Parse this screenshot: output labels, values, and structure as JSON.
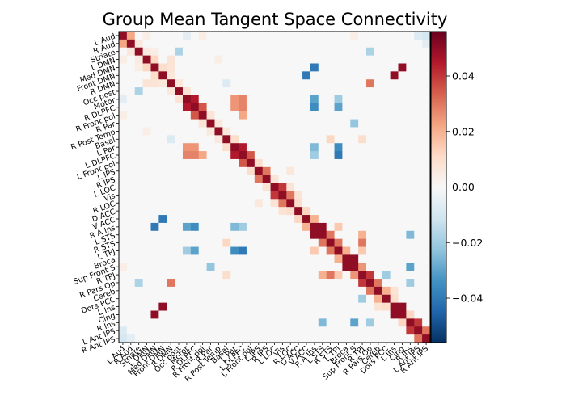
{
  "chart_data": {
    "type": "heatmap",
    "title": "Group Mean Tangent Space Connectivity",
    "xlabel": "",
    "ylabel": "",
    "labels": [
      "L Aud",
      "R Aud",
      "Striate",
      "L DMN",
      "Med DMN",
      "Front DMN",
      "R DMN",
      "Occ post",
      "Motor",
      "R DLPFC",
      "R Front pol",
      "R Par",
      "R Post Temp",
      "Basal",
      "L Par",
      "L DLPFC",
      "L Front pol",
      "L IPS",
      "R IPS",
      "L LOC",
      "Vis",
      "R LOC",
      "D ACC",
      "V ACC",
      "R A Ins",
      "L STS",
      "R STS",
      "L TPJ",
      "Broca",
      "Sup Front S",
      "R TPJ",
      "R Pars Op",
      "Cereb",
      "Dors PCC",
      "L Ins",
      "Cing",
      "R Ins",
      "L Ant IPS",
      "R Ant IPS"
    ],
    "colormap": "RdBu_r",
    "diverging_center": 0.0,
    "color_range": [
      -0.056,
      0.056
    ],
    "colorbar_ticks": [
      -0.04,
      -0.02,
      0.0,
      0.02,
      0.04
    ],
    "colorbar_tick_labels": [
      "−0.04",
      "−0.02",
      "0.00",
      "0.02",
      "0.04"
    ],
    "diagonal_value": 0.05,
    "grid": false,
    "pairs": [
      {
        "a": 0,
        "b": 1,
        "value": 0.022
      },
      {
        "a": 0,
        "b": 3,
        "value": 0.004
      },
      {
        "a": 0,
        "b": 8,
        "value": -0.006
      },
      {
        "a": 0,
        "b": 10,
        "value": 0.004
      },
      {
        "a": 0,
        "b": 29,
        "value": 0.004
      },
      {
        "a": 0,
        "b": 37,
        "value": -0.008
      },
      {
        "a": 0,
        "b": 38,
        "value": -0.01
      },
      {
        "a": 1,
        "b": 2,
        "value": 0.006
      },
      {
        "a": 1,
        "b": 38,
        "value": -0.006
      },
      {
        "a": 2,
        "b": 3,
        "value": 0.005
      },
      {
        "a": 2,
        "b": 4,
        "value": 0.004
      },
      {
        "a": 2,
        "b": 7,
        "value": -0.018
      },
      {
        "a": 2,
        "b": 31,
        "value": -0.018
      },
      {
        "a": 3,
        "b": 4,
        "value": 0.012
      },
      {
        "a": 3,
        "b": 6,
        "value": 0.008
      },
      {
        "a": 3,
        "b": 12,
        "value": 0.004
      },
      {
        "a": 4,
        "b": 5,
        "value": 0.01
      },
      {
        "a": 4,
        "b": 6,
        "value": 0.008
      },
      {
        "a": 4,
        "b": 24,
        "value": -0.04
      },
      {
        "a": 4,
        "b": 35,
        "value": 0.05
      },
      {
        "a": 5,
        "b": 6,
        "value": 0.006
      },
      {
        "a": 5,
        "b": 23,
        "value": -0.04
      },
      {
        "a": 5,
        "b": 34,
        "value": 0.05
      },
      {
        "a": 6,
        "b": 7,
        "value": 0.006
      },
      {
        "a": 6,
        "b": 13,
        "value": -0.008
      },
      {
        "a": 6,
        "b": 31,
        "value": 0.03
      },
      {
        "a": 7,
        "b": 8,
        "value": 0.008
      },
      {
        "a": 8,
        "b": 9,
        "value": 0.045
      },
      {
        "a": 8,
        "b": 14,
        "value": 0.025
      },
      {
        "a": 8,
        "b": 15,
        "value": 0.028
      },
      {
        "a": 8,
        "b": 24,
        "value": -0.03
      },
      {
        "a": 8,
        "b": 27,
        "value": -0.02
      },
      {
        "a": 9,
        "b": 10,
        "value": 0.035
      },
      {
        "a": 9,
        "b": 14,
        "value": 0.025
      },
      {
        "a": 9,
        "b": 15,
        "value": 0.028
      },
      {
        "a": 9,
        "b": 24,
        "value": -0.035
      },
      {
        "a": 9,
        "b": 27,
        "value": -0.03
      },
      {
        "a": 10,
        "b": 11,
        "value": 0.008
      },
      {
        "a": 10,
        "b": 15,
        "value": 0.022
      },
      {
        "a": 11,
        "b": 12,
        "value": 0.006
      },
      {
        "a": 11,
        "b": 29,
        "value": -0.022
      },
      {
        "a": 12,
        "b": 13,
        "value": 0.006
      },
      {
        "a": 13,
        "b": 14,
        "value": 0.01
      },
      {
        "a": 13,
        "b": 26,
        "value": 0.012
      },
      {
        "a": 13,
        "b": 30,
        "value": 0.01
      },
      {
        "a": 14,
        "b": 15,
        "value": 0.045
      },
      {
        "a": 14,
        "b": 24,
        "value": -0.025
      },
      {
        "a": 14,
        "b": 27,
        "value": -0.035
      },
      {
        "a": 15,
        "b": 16,
        "value": 0.035
      },
      {
        "a": 15,
        "b": 27,
        "value": -0.04
      },
      {
        "a": 15,
        "b": 24,
        "value": -0.02
      },
      {
        "a": 16,
        "b": 17,
        "value": 0.01
      },
      {
        "a": 17,
        "b": 18,
        "value": 0.03
      },
      {
        "a": 17,
        "b": 21,
        "value": 0.006
      },
      {
        "a": 18,
        "b": 19,
        "value": 0.008
      },
      {
        "a": 19,
        "b": 20,
        "value": 0.04
      },
      {
        "a": 19,
        "b": 21,
        "value": 0.008
      },
      {
        "a": 20,
        "b": 21,
        "value": 0.03
      },
      {
        "a": 20,
        "b": 22,
        "value": 0.008
      },
      {
        "a": 21,
        "b": 22,
        "value": 0.01
      },
      {
        "a": 22,
        "b": 23,
        "value": 0.012
      },
      {
        "a": 23,
        "b": 24,
        "value": 0.02
      },
      {
        "a": 24,
        "b": 25,
        "value": 0.05
      },
      {
        "a": 24,
        "b": 27,
        "value": 0.015
      },
      {
        "a": 25,
        "b": 26,
        "value": 0.03
      },
      {
        "a": 25,
        "b": 30,
        "value": 0.02
      },
      {
        "a": 25,
        "b": 36,
        "value": -0.025
      },
      {
        "a": 26,
        "b": 27,
        "value": 0.03
      },
      {
        "a": 26,
        "b": 30,
        "value": 0.03
      },
      {
        "a": 27,
        "b": 28,
        "value": 0.02
      },
      {
        "a": 27,
        "b": 30,
        "value": 0.015
      },
      {
        "a": 28,
        "b": 29,
        "value": 0.05
      },
      {
        "a": 29,
        "b": 30,
        "value": 0.025
      },
      {
        "a": 29,
        "b": 36,
        "value": -0.03
      },
      {
        "a": 30,
        "b": 31,
        "value": 0.04
      },
      {
        "a": 30,
        "b": 33,
        "value": -0.02
      },
      {
        "a": 31,
        "b": 32,
        "value": 0.03
      },
      {
        "a": 31,
        "b": 36,
        "value": -0.02
      },
      {
        "a": 32,
        "b": 33,
        "value": 0.02
      },
      {
        "a": 32,
        "b": 34,
        "value": 0.008
      },
      {
        "a": 33,
        "b": 34,
        "value": 0.01
      },
      {
        "a": 34,
        "b": 35,
        "value": 0.05
      },
      {
        "a": 35,
        "b": 36,
        "value": 0.012
      },
      {
        "a": 36,
        "b": 37,
        "value": 0.04
      },
      {
        "a": 37,
        "b": 38,
        "value": 0.03
      }
    ]
  }
}
